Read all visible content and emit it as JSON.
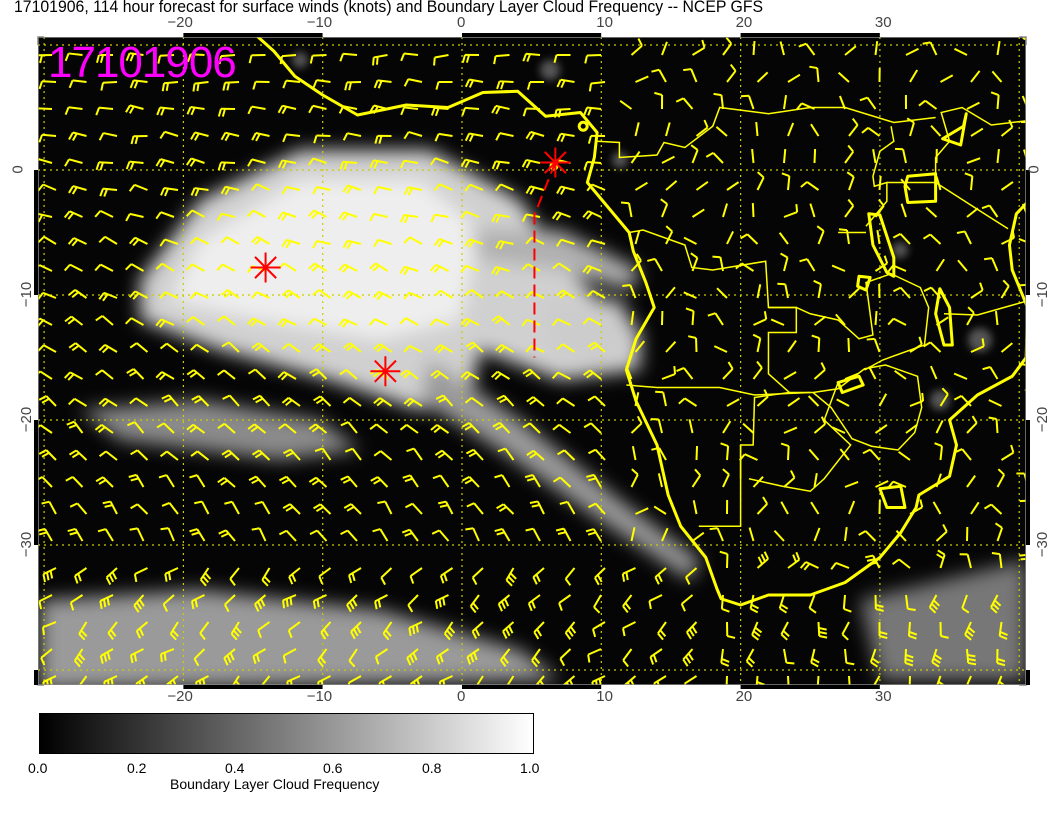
{
  "title": "17101906, 114 hour forecast for surface winds (knots) and Boundary Layer Cloud Frequency -- NCEP GFS",
  "date_stamp": "17101906",
  "lon_ticks": [
    "−20",
    "−10",
    "0",
    "10",
    "20",
    "30"
  ],
  "lat_ticks": [
    "0",
    "−10",
    "−20",
    "−30"
  ],
  "map_extent": {
    "lon": [
      -30.4,
      40.5
    ],
    "lat": [
      11,
      -41
    ]
  },
  "markers": [
    {
      "type": "red-asterisk",
      "lon": -14.1,
      "lat": -7.8
    },
    {
      "type": "red-asterisk",
      "lon": -5.5,
      "lat": -16.1
    },
    {
      "type": "red-asterisk",
      "lon": 6.7,
      "lat": 0.6
    }
  ],
  "track": {
    "type": "red-dashed-line",
    "points": [
      [
        6.7,
        0.6
      ],
      [
        5.2,
        -3.6
      ],
      [
        5.2,
        -15
      ]
    ]
  },
  "colors": {
    "coast": "#ffff00",
    "markers": "#ff0000",
    "stamp": "#ff00ff",
    "wind_barbs": "#ffff00"
  },
  "colorbar": {
    "ticks": [
      "0.0",
      "0.2",
      "0.4",
      "0.6",
      "0.8",
      "1.0"
    ],
    "label": "Boundary Layer Cloud Frequency",
    "range": [
      0,
      1
    ],
    "colormap": "black-to-white"
  }
}
